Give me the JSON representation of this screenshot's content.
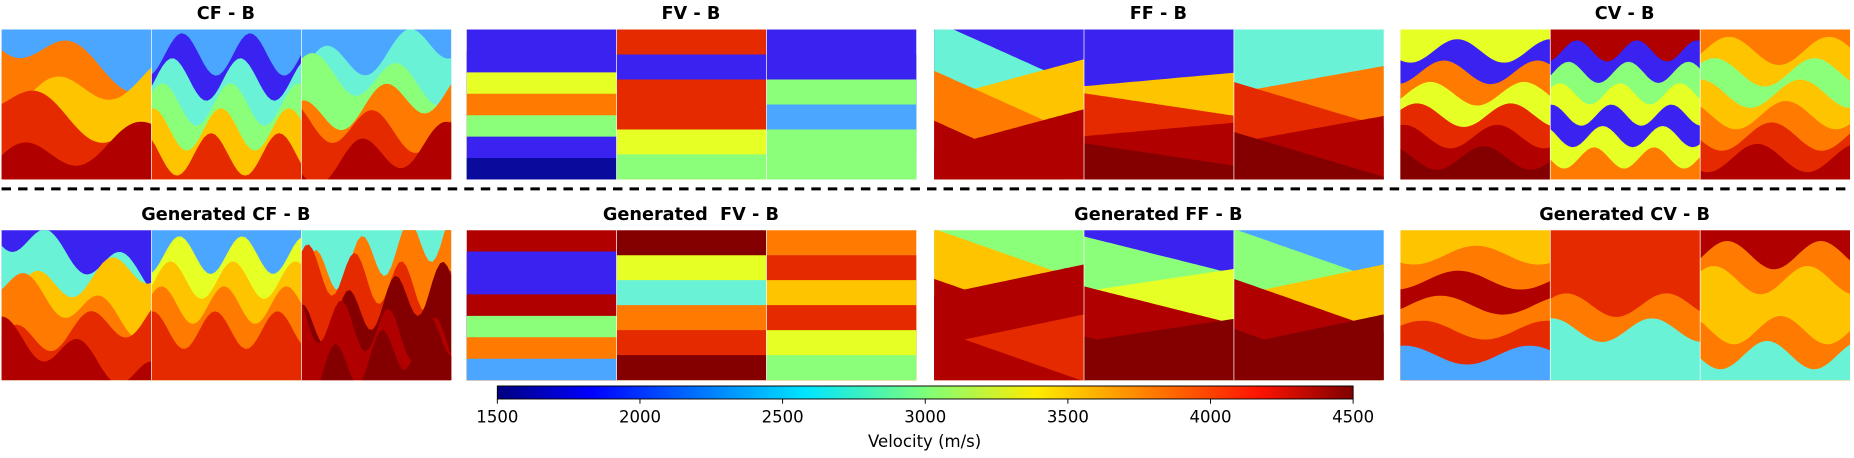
{
  "panels": [
    {
      "title": "CF - B"
    },
    {
      "title": "FV - B"
    },
    {
      "title": "FF - B"
    },
    {
      "title": "CV - B"
    },
    {
      "title": "Generated CF - B"
    },
    {
      "title": "Generated  FV - B"
    },
    {
      "title": "Generated FF - B"
    },
    {
      "title": "Generated CV - B"
    }
  ],
  "colorbar": {
    "label": "Velocity (m/s)",
    "lim": [
      1500,
      4500
    ],
    "ticks": [
      1500,
      2000,
      2500,
      3000,
      3500,
      4000,
      4500
    ]
  }
}
